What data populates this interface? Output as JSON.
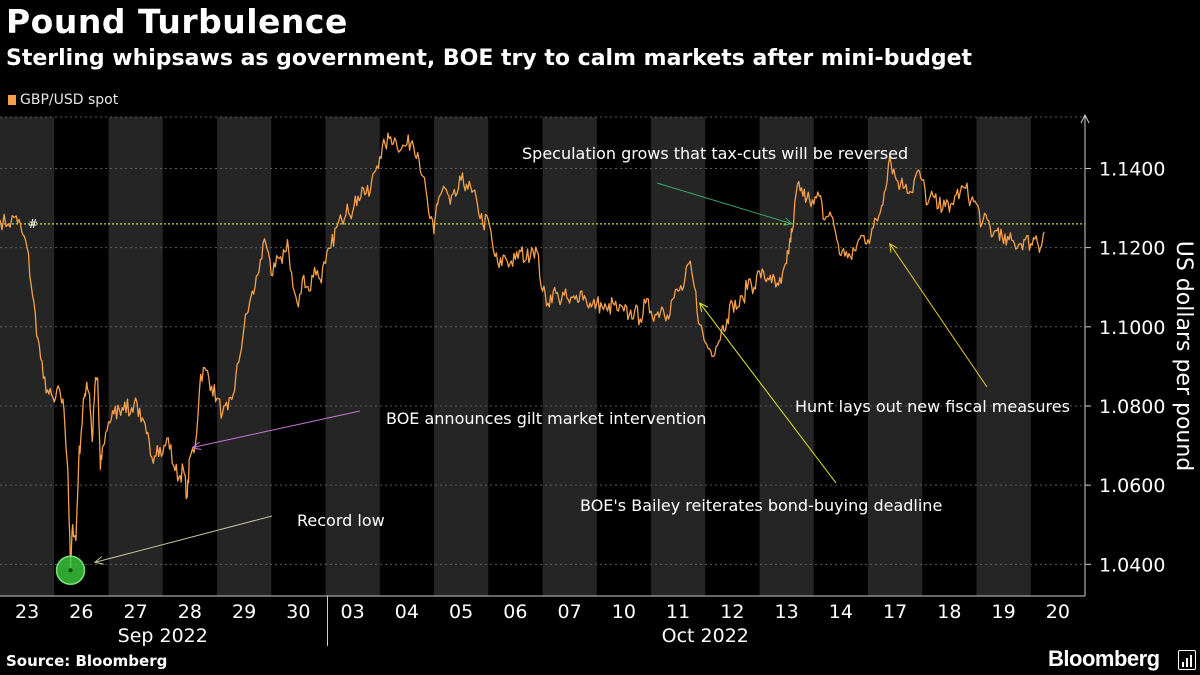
{
  "title": "Pound Turbulence",
  "subtitle": "Sterling whipsaws as government, BOE try to calm markets after mini-budget",
  "legend": "GBP/USD spot",
  "source": "Source: Bloomberg",
  "brand": "Bloomberg",
  "colors": {
    "series": "#f5a04a",
    "background": "#000000",
    "weekend_band": "#252525",
    "grid": "#5c5c5c",
    "reference_line": "#b8e04a",
    "marker": "#3ac23a"
  },
  "chart_data": {
    "type": "line",
    "title": "Pound Turbulence",
    "ylabel": "US dollars per pound",
    "ylim": [
      1.032,
      1.153
    ],
    "yticks": [
      1.04,
      1.06,
      1.08,
      1.1,
      1.12,
      1.14
    ],
    "ytick_labels": [
      "1.0400",
      "1.0600",
      "1.0800",
      "1.1000",
      "1.1200",
      "1.1400"
    ],
    "days": [
      "23",
      "26",
      "27",
      "28",
      "29",
      "30",
      "03",
      "04",
      "05",
      "06",
      "07",
      "10",
      "11",
      "12",
      "13",
      "14",
      "17",
      "18",
      "19",
      "20"
    ],
    "month_labels": [
      {
        "label": "Sep 2022",
        "first_day": 0,
        "last_day": 5
      },
      {
        "label": "Oct 2022",
        "first_day": 6,
        "last_day": 19
      }
    ],
    "reference_line": {
      "value": 1.126,
      "marker": "#"
    },
    "series": [
      {
        "name": "GBP/USD spot",
        "points": [
          [
            0.0,
            1.127
          ],
          [
            0.15,
            1.126
          ],
          [
            0.3,
            1.128
          ],
          [
            0.4,
            1.124
          ],
          [
            0.5,
            1.12
          ],
          [
            0.6,
            1.108
          ],
          [
            0.7,
            1.097
          ],
          [
            0.8,
            1.087
          ],
          [
            0.9,
            1.083
          ],
          [
            1.0,
            1.081
          ],
          [
            1.1,
            1.084
          ],
          [
            1.18,
            1.079
          ],
          [
            1.25,
            1.064
          ],
          [
            1.3,
            1.0385
          ],
          [
            1.34,
            1.05
          ],
          [
            1.4,
            1.046
          ],
          [
            1.45,
            1.066
          ],
          [
            1.5,
            1.074
          ],
          [
            1.55,
            1.082
          ],
          [
            1.6,
            1.086
          ],
          [
            1.65,
            1.083
          ],
          [
            1.7,
            1.071
          ],
          [
            1.75,
            1.085
          ],
          [
            1.8,
            1.087
          ],
          [
            1.85,
            1.064
          ],
          [
            1.9,
            1.07
          ],
          [
            2.0,
            1.076
          ],
          [
            2.1,
            1.078
          ],
          [
            2.2,
            1.079
          ],
          [
            2.3,
            1.081
          ],
          [
            2.4,
            1.078
          ],
          [
            2.5,
            1.082
          ],
          [
            2.6,
            1.076
          ],
          [
            2.7,
            1.073
          ],
          [
            2.8,
            1.067
          ],
          [
            2.9,
            1.07
          ],
          [
            3.0,
            1.068
          ],
          [
            3.1,
            1.072
          ],
          [
            3.2,
            1.065
          ],
          [
            3.3,
            1.062
          ],
          [
            3.38,
            1.064
          ],
          [
            3.45,
            1.057
          ],
          [
            3.5,
            1.067
          ],
          [
            3.6,
            1.07
          ],
          [
            3.7,
            1.088
          ],
          [
            3.8,
            1.089
          ],
          [
            3.9,
            1.085
          ],
          [
            4.0,
            1.082
          ],
          [
            4.1,
            1.078
          ],
          [
            4.2,
            1.079
          ],
          [
            4.3,
            1.083
          ],
          [
            4.4,
            1.091
          ],
          [
            4.5,
            1.1
          ],
          [
            4.6,
            1.106
          ],
          [
            4.7,
            1.11
          ],
          [
            4.8,
            1.117
          ],
          [
            4.9,
            1.121
          ],
          [
            5.0,
            1.113
          ],
          [
            5.1,
            1.118
          ],
          [
            5.2,
            1.116
          ],
          [
            5.3,
            1.122
          ],
          [
            5.4,
            1.11
          ],
          [
            5.5,
            1.105
          ],
          [
            5.6,
            1.113
          ],
          [
            5.7,
            1.109
          ],
          [
            5.8,
            1.115
          ],
          [
            5.9,
            1.112
          ],
          [
            6.0,
            1.116
          ],
          [
            6.1,
            1.12
          ],
          [
            6.2,
            1.125
          ],
          [
            6.3,
            1.127
          ],
          [
            6.4,
            1.131
          ],
          [
            6.5,
            1.129
          ],
          [
            6.6,
            1.133
          ],
          [
            6.7,
            1.135
          ],
          [
            6.8,
            1.133
          ],
          [
            6.9,
            1.139
          ],
          [
            7.0,
            1.143
          ],
          [
            7.1,
            1.146
          ],
          [
            7.2,
            1.148
          ],
          [
            7.3,
            1.147
          ],
          [
            7.4,
            1.145
          ],
          [
            7.5,
            1.146
          ],
          [
            7.6,
            1.147
          ],
          [
            7.7,
            1.144
          ],
          [
            7.8,
            1.138
          ],
          [
            7.9,
            1.129
          ],
          [
            8.0,
            1.1235
          ],
          [
            8.05,
            1.131
          ],
          [
            8.1,
            1.133
          ],
          [
            8.2,
            1.135
          ],
          [
            8.3,
            1.131
          ],
          [
            8.4,
            1.133
          ],
          [
            8.5,
            1.137
          ],
          [
            8.6,
            1.136
          ],
          [
            8.7,
            1.134
          ],
          [
            8.8,
            1.131
          ],
          [
            8.9,
            1.126
          ],
          [
            9.0,
            1.127
          ],
          [
            9.1,
            1.119
          ],
          [
            9.2,
            1.115
          ],
          [
            9.3,
            1.118
          ],
          [
            9.4,
            1.116
          ],
          [
            9.5,
            1.117
          ],
          [
            9.6,
            1.119
          ],
          [
            9.7,
            1.117
          ],
          [
            9.8,
            1.12
          ],
          [
            9.9,
            1.119
          ],
          [
            10.0,
            1.109
          ],
          [
            10.1,
            1.106
          ],
          [
            10.2,
            1.109
          ],
          [
            10.3,
            1.107
          ],
          [
            10.4,
            1.108
          ],
          [
            10.5,
            1.106
          ],
          [
            10.6,
            1.107
          ],
          [
            10.7,
            1.109
          ],
          [
            10.8,
            1.107
          ],
          [
            10.9,
            1.105
          ],
          [
            11.0,
            1.106
          ],
          [
            11.1,
            1.105
          ],
          [
            11.2,
            1.104
          ],
          [
            11.3,
            1.106
          ],
          [
            11.4,
            1.104
          ],
          [
            11.5,
            1.104
          ],
          [
            11.6,
            1.103
          ],
          [
            11.7,
            1.104
          ],
          [
            11.8,
            1.102
          ],
          [
            11.9,
            1.106
          ],
          [
            12.0,
            1.104
          ],
          [
            12.1,
            1.103
          ],
          [
            12.2,
            1.105
          ],
          [
            12.3,
            1.103
          ],
          [
            12.4,
            1.107
          ],
          [
            12.5,
            1.109
          ],
          [
            12.6,
            1.11
          ],
          [
            12.7,
            1.116
          ],
          [
            12.8,
            1.11
          ],
          [
            12.9,
            1.1005
          ],
          [
            13.0,
            1.096
          ],
          [
            13.1,
            1.094
          ],
          [
            13.2,
            1.095
          ],
          [
            13.3,
            1.099
          ],
          [
            13.4,
            1.102
          ],
          [
            13.5,
            1.106
          ],
          [
            13.6,
            1.105
          ],
          [
            13.7,
            1.107
          ],
          [
            13.8,
            1.112
          ],
          [
            13.9,
            1.11
          ],
          [
            14.0,
            1.114
          ],
          [
            14.1,
            1.112
          ],
          [
            14.2,
            1.113
          ],
          [
            14.3,
            1.11
          ],
          [
            14.4,
            1.111
          ],
          [
            14.5,
            1.116
          ],
          [
            14.55,
            1.1205
          ],
          [
            14.6,
            1.124
          ],
          [
            14.7,
            1.136
          ],
          [
            14.8,
            1.133
          ],
          [
            14.9,
            1.134
          ],
          [
            15.0,
            1.131
          ],
          [
            15.1,
            1.133
          ],
          [
            15.2,
            1.127
          ],
          [
            15.3,
            1.129
          ],
          [
            15.4,
            1.124
          ],
          [
            15.5,
            1.118
          ],
          [
            15.6,
            1.119
          ],
          [
            15.7,
            1.117
          ],
          [
            15.8,
            1.121
          ],
          [
            15.9,
            1.123
          ],
          [
            16.0,
            1.122
          ],
          [
            16.1,
            1.125
          ],
          [
            16.2,
            1.128
          ],
          [
            16.3,
            1.134
          ],
          [
            16.4,
            1.143
          ],
          [
            16.5,
            1.138
          ],
          [
            16.6,
            1.136
          ],
          [
            16.7,
            1.136
          ],
          [
            16.8,
            1.134
          ],
          [
            16.9,
            1.139
          ],
          [
            17.0,
            1.137
          ],
          [
            17.1,
            1.131
          ],
          [
            17.2,
            1.133
          ],
          [
            17.3,
            1.13
          ],
          [
            17.4,
            1.132
          ],
          [
            17.5,
            1.129
          ],
          [
            17.6,
            1.133
          ],
          [
            17.7,
            1.134
          ],
          [
            17.8,
            1.135
          ],
          [
            17.9,
            1.132
          ],
          [
            18.0,
            1.131
          ],
          [
            18.1,
            1.126
          ],
          [
            18.2,
            1.127
          ],
          [
            18.3,
            1.123
          ],
          [
            18.4,
            1.125
          ],
          [
            18.5,
            1.121
          ],
          [
            18.6,
            1.122
          ],
          [
            18.7,
            1.121
          ],
          [
            18.8,
            1.121
          ],
          [
            18.9,
            1.122
          ],
          [
            19.0,
            1.121
          ],
          [
            19.1,
            1.123
          ],
          [
            19.18,
            1.12
          ],
          [
            19.25,
            1.124
          ]
        ]
      }
    ],
    "annotations": [
      {
        "text": "Speculation grows that tax-cuts will be reversed",
        "color": "#ffffff",
        "arrow_color": "#3aa86a",
        "target": [
          14.6,
          1.126
        ]
      },
      {
        "text": "BOE announces gilt market intervention",
        "color": "#ffffff",
        "arrow_color": "#c878d8",
        "target": [
          3.55,
          1.0695
        ]
      },
      {
        "text": "Record low",
        "color": "#ffffff",
        "arrow_color": "#c4c49a",
        "target": [
          1.75,
          1.0405
        ]
      },
      {
        "text": "BOE's Bailey reiterates bond-buying deadline",
        "color": "#ffffff",
        "arrow_color": "#e8e830",
        "target": [
          12.9,
          1.106
        ]
      },
      {
        "text": "Hunt lays out new fiscal measures",
        "color": "#ffffff",
        "arrow_color": "#e8c830",
        "target": [
          16.4,
          1.121
        ]
      }
    ],
    "record_low": {
      "day": 1.3,
      "value": 1.0385
    }
  }
}
